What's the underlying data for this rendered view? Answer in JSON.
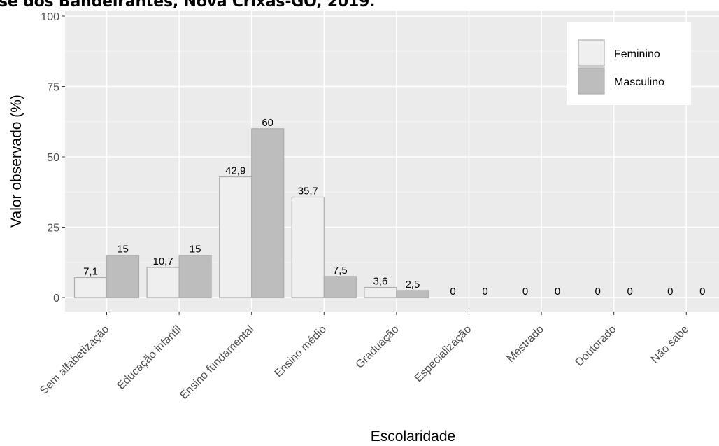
{
  "header": {
    "title": "se dos Bandeirantes, Nova Crixás-GO, 2019."
  },
  "chart_data": {
    "type": "bar",
    "title": "",
    "xlabel": "Escolaridade",
    "ylabel": "Valor observado (%)",
    "ylim": [
      0,
      100
    ],
    "yticks": [
      "0",
      "25",
      "50",
      "75",
      "100"
    ],
    "categories": [
      "Sem alfabetização",
      "Educação infantil",
      "Ensino fundamental",
      "Ensino médio",
      "Graduação",
      "Especialização",
      "Mestrado",
      "Doutorado",
      "Não sabe"
    ],
    "series": [
      {
        "name": "Feminino",
        "values": [
          7.1,
          10.7,
          42.9,
          35.7,
          3.6,
          0,
          0,
          0,
          0
        ],
        "labels": [
          "7,1",
          "10,7",
          "42,9",
          "35,7",
          "3,6",
          "0",
          "0",
          "0",
          "0"
        ],
        "color": "#efefef"
      },
      {
        "name": "Masculino",
        "values": [
          15,
          15,
          60,
          7.5,
          2.5,
          0,
          0,
          0,
          0
        ],
        "labels": [
          "15",
          "15",
          "60",
          "7,5",
          "2,5",
          "0",
          "0",
          "0",
          "0"
        ],
        "color": "#bdbdbd"
      }
    ],
    "grid": true,
    "legend_position": "top-right",
    "panel_color": "#ebebeb"
  }
}
